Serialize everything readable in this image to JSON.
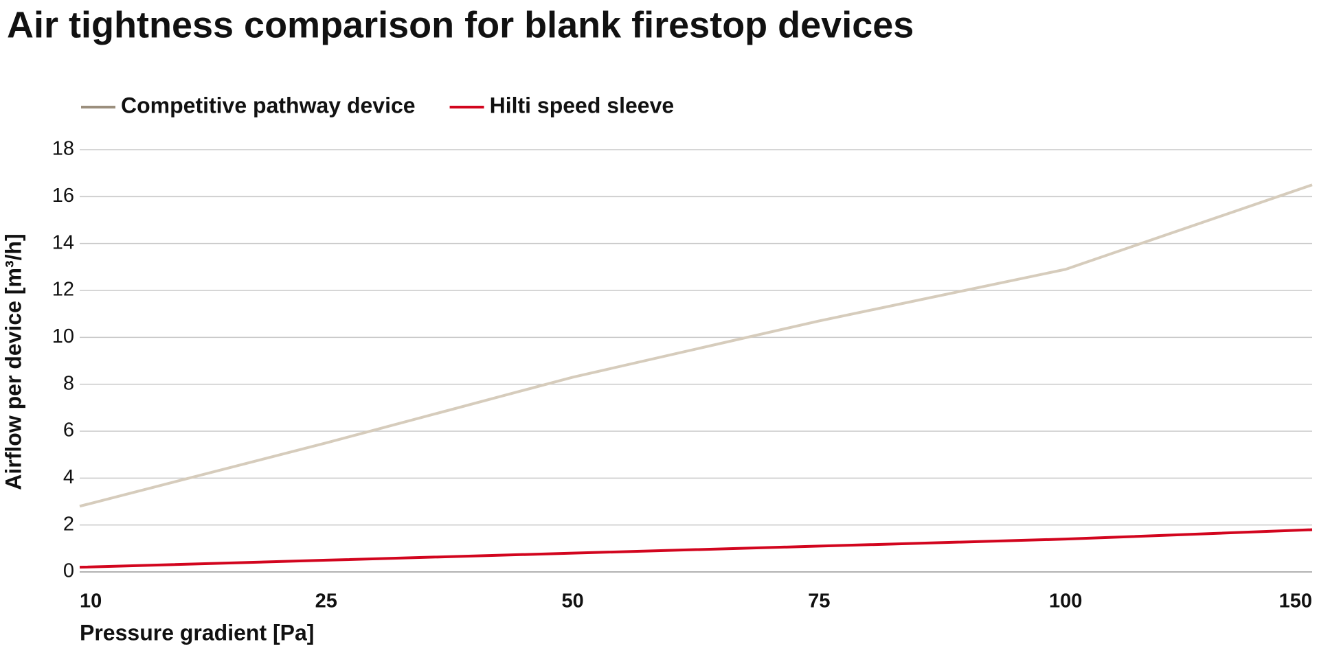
{
  "chart_data": {
    "type": "line",
    "title": "Air tightness comparison for blank firestop devices",
    "x_label": "Pressure gradient [Pa]",
    "y_label": "Airflow per device [m³/h]",
    "categories": [
      10,
      25,
      50,
      75,
      100,
      150
    ],
    "series": [
      {
        "name": "Competitive pathway device",
        "color": "#d6ccbc",
        "values": [
          2.8,
          5.5,
          8.3,
          10.7,
          12.9,
          16.5
        ]
      },
      {
        "name": "Hilti speed sleeve",
        "color": "#d2051e",
        "values": [
          0.2,
          0.5,
          0.8,
          1.1,
          1.4,
          1.8
        ]
      }
    ],
    "ylim": [
      0,
      18
    ],
    "yticks": [
      0,
      2,
      4,
      6,
      8,
      10,
      12,
      14,
      16,
      18
    ],
    "grid": true,
    "legend": "top-left"
  }
}
